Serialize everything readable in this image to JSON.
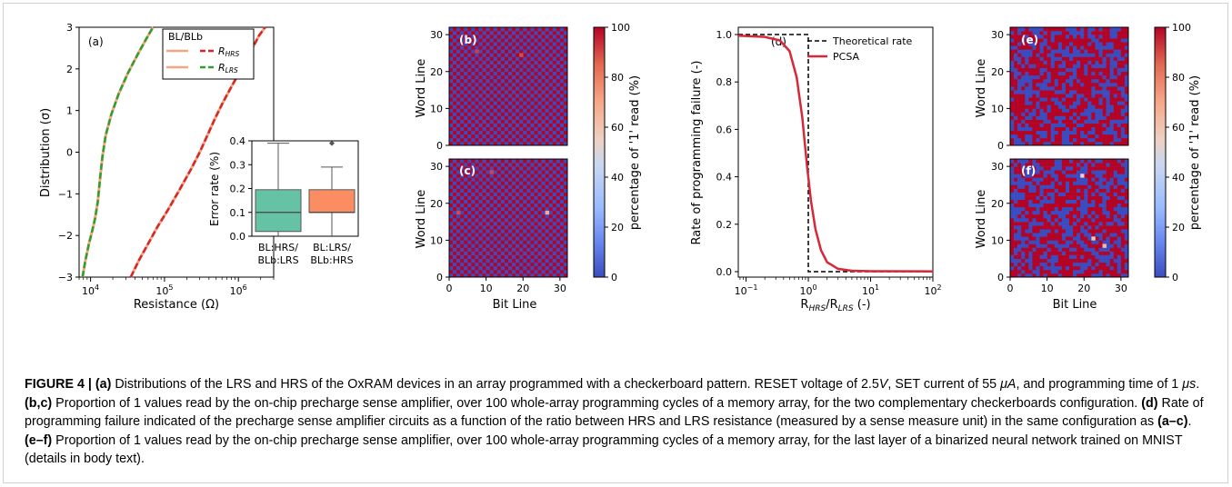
{
  "panel_a": {
    "label": "(a)",
    "xlabel": "Resistance (Ω)",
    "ylabel": "Distribution (σ)",
    "x_ticks": [
      {
        "base": "10",
        "exp": "4",
        "value": 10000
      },
      {
        "base": "10",
        "exp": "5",
        "value": 100000
      },
      {
        "base": "10",
        "exp": "6",
        "value": 1000000
      }
    ],
    "y_ticks": [
      "3",
      "2",
      "1",
      "0",
      "−1",
      "−2",
      "−3"
    ],
    "legend": {
      "title": "BL/BLb",
      "rows": [
        {
          "label": "R",
          "sub": "HRS",
          "solid_color": "#f4a582",
          "dash_color": "#d62728"
        },
        {
          "label": "R",
          "sub": "LRS",
          "solid_color": "#f4a582",
          "dash_color": "#2ca02c"
        }
      ]
    },
    "chart_data": {
      "type": "line",
      "xscale": "log",
      "xlim": [
        7000,
        3000000
      ],
      "ylim": [
        -3,
        3
      ],
      "series": [
        {
          "name": "BL/BLb R_LRS",
          "color": "#2ca02c",
          "points": [
            [
              7800,
              -3
            ],
            [
              8500,
              -2.6
            ],
            [
              9500,
              -2.2
            ],
            [
              10500,
              -1.9
            ],
            [
              11500,
              -1.6
            ],
            [
              12500,
              -1.2
            ],
            [
              13500,
              -0.6
            ],
            [
              14500,
              -0.1
            ],
            [
              16000,
              0.4
            ],
            [
              19000,
              0.9
            ],
            [
              24000,
              1.4
            ],
            [
              32000,
              1.9
            ],
            [
              45000,
              2.4
            ],
            [
              60000,
              2.8
            ],
            [
              70000,
              3
            ]
          ]
        },
        {
          "name": "BL/BLb R_HRS",
          "color": "#d62728",
          "points": [
            [
              35000,
              -3
            ],
            [
              45000,
              -2.6
            ],
            [
              60000,
              -2.2
            ],
            [
              80000,
              -1.8
            ],
            [
              110000,
              -1.4
            ],
            [
              160000,
              -0.9
            ],
            [
              230000,
              -0.4
            ],
            [
              300000,
              0
            ],
            [
              380000,
              0.4
            ],
            [
              480000,
              0.8
            ],
            [
              620000,
              1.2
            ],
            [
              820000,
              1.6
            ],
            [
              1100000,
              2.0
            ],
            [
              1450000,
              2.4
            ],
            [
              1900000,
              2.8
            ],
            [
              2300000,
              3
            ]
          ]
        }
      ]
    },
    "inset": {
      "ylabel": "Error rate (%)",
      "y_ticks": [
        "0.4",
        "0.3",
        "0.2",
        "0.1",
        "0.0"
      ],
      "categories": [
        {
          "line1": "BL:HRS/",
          "line2": "BLb:LRS"
        },
        {
          "line1": "BL:LRS/",
          "line2": "BLb:HRS"
        }
      ],
      "chart_data": {
        "type": "box",
        "ylim": [
          0,
          0.4
        ],
        "boxes": [
          {
            "color": "#66c2a5",
            "whisker_low": 0.0,
            "q1": 0.02,
            "median": 0.1,
            "q3": 0.195,
            "whisker_high": 0.39,
            "outliers": []
          },
          {
            "color": "#fc8d62",
            "whisker_low": 0.0,
            "q1": 0.1,
            "median": 0.1,
            "q3": 0.195,
            "whisker_high": 0.29,
            "outliers": [
              0.39
            ]
          }
        ]
      }
    }
  },
  "heatmaps": {
    "ylabel": "Word Line",
    "xlabel": "Bit Line",
    "ticks": [
      "0",
      "10",
      "20",
      "30"
    ],
    "colorbar": {
      "label": "percentage of '1' read (%)",
      "ticks": [
        "100",
        "80",
        "60",
        "40",
        "20",
        "0"
      ],
      "stops": [
        "#3b4cc0",
        "#6788ee",
        "#9abbff",
        "#c9d7f0",
        "#edd1c2",
        "#f7a889",
        "#e26952",
        "#b40426"
      ]
    },
    "b": {
      "label": "(b)",
      "chart_data": {
        "type": "heatmap",
        "rows": 32,
        "cols": 32,
        "pattern": "checkerboard",
        "phase": 0,
        "low": 0,
        "high": 100,
        "anomalies": [
          {
            "r": 24,
            "c": 19,
            "v": 90
          },
          {
            "r": 25,
            "c": 7,
            "v": 92
          }
        ]
      }
    },
    "c": {
      "label": "(c)",
      "chart_data": {
        "type": "heatmap",
        "rows": 32,
        "cols": 32,
        "pattern": "checkerboard",
        "phase": 1,
        "low": 0,
        "high": 100,
        "anomalies": [
          {
            "r": 28,
            "c": 11,
            "v": 91
          },
          {
            "r": 17,
            "c": 2,
            "v": 90
          },
          {
            "r": 17,
            "c": 26,
            "v": 70
          }
        ]
      }
    },
    "e": {
      "label": "(e)",
      "chart_data": {
        "type": "heatmap",
        "rows": 32,
        "cols": 32,
        "pattern": "random",
        "seed": 7,
        "p_high": 0.55,
        "low": 0,
        "high": 100,
        "anomalies": []
      }
    },
    "f": {
      "label": "(f)",
      "chart_data": {
        "type": "heatmap",
        "rows": 32,
        "cols": 32,
        "pattern": "random",
        "seed": 23,
        "p_high": 0.55,
        "low": 0,
        "high": 100,
        "anomalies": [
          {
            "r": 27,
            "c": 19,
            "v": 55
          },
          {
            "r": 10,
            "c": 22,
            "v": 60
          },
          {
            "r": 8,
            "c": 25,
            "v": 65
          }
        ]
      }
    }
  },
  "panel_d": {
    "label": "(d)",
    "ylabel": "Rate of programming failure (-)",
    "xlabel_main": "R",
    "xlabel_sub1": "HRS",
    "xlabel_mid": "/R",
    "xlabel_sub2": "LRS",
    "xlabel_tail": " (-)",
    "x_ticks": [
      {
        "base": "10",
        "exp": "−1",
        "value": 0.1
      },
      {
        "base": "10",
        "exp": "0",
        "value": 1
      },
      {
        "base": "10",
        "exp": "1",
        "value": 10
      },
      {
        "base": "10",
        "exp": "2",
        "value": 100
      }
    ],
    "y_ticks": [
      "1.0",
      "0.8",
      "0.6",
      "0.4",
      "0.2",
      "0.0"
    ],
    "legend": [
      {
        "label": "Theoretical rate",
        "style": "dashed",
        "color": "#000000"
      },
      {
        "label": "PCSA",
        "style": "solid",
        "color": "#d62839"
      }
    ],
    "chart_data": {
      "type": "line",
      "xscale": "log",
      "xlim": [
        0.075,
        100
      ],
      "ylim": [
        0,
        1
      ],
      "series": [
        {
          "name": "Theoretical rate",
          "color": "#000000",
          "points": [
            [
              0.075,
              1
            ],
            [
              1,
              1
            ],
            [
              1,
              0
            ],
            [
              100,
              0
            ]
          ]
        },
        {
          "name": "PCSA",
          "color": "#d62839",
          "points": [
            [
              0.075,
              0.995
            ],
            [
              0.2,
              0.99
            ],
            [
              0.35,
              0.975
            ],
            [
              0.5,
              0.93
            ],
            [
              0.65,
              0.82
            ],
            [
              0.8,
              0.65
            ],
            [
              0.95,
              0.45
            ],
            [
              1.1,
              0.3
            ],
            [
              1.3,
              0.18
            ],
            [
              1.6,
              0.09
            ],
            [
              2,
              0.04
            ],
            [
              3,
              0.012
            ],
            [
              5,
              0.004
            ],
            [
              10,
              0.002
            ],
            [
              100,
              0.001
            ]
          ]
        }
      ]
    }
  },
  "caption": {
    "label": "FIGURE 4 | ",
    "p1b": "(a)",
    "p1": " Distributions of the LRS and HRS of the OxRAM devices in an array programmed with a checkerboard pattern. RESET voltage of 2.5",
    "v": "V",
    "p2": ", SET current of 55 ",
    "ua": "μA",
    "p3": ", and programming time of 1 ",
    "us": "μs",
    "p4": ". ",
    "p5b": "(b,c)",
    "p5": " Proportion of 1 values read by the on-chip precharge sense amplifier, over 100 whole-array programming cycles of a memory array, for the two complementary checkerboards configuration. ",
    "p6b": "(d)",
    "p6": " Rate of programming failure indicated of the precharge sense amplifier circuits as a function of the ratio between HRS and LRS resistance (measured by a sense measure unit) in the same configuration as ",
    "p7b": "(a–c)",
    "p7": ". ",
    "p8b": "(e–f)",
    "p8": " Proportion of 1 values read by the on-chip precharge sense amplifier, over 100 whole-array programming cycles of a memory array, for the last layer of a binarized neural network trained on MNIST (details in body text)."
  }
}
